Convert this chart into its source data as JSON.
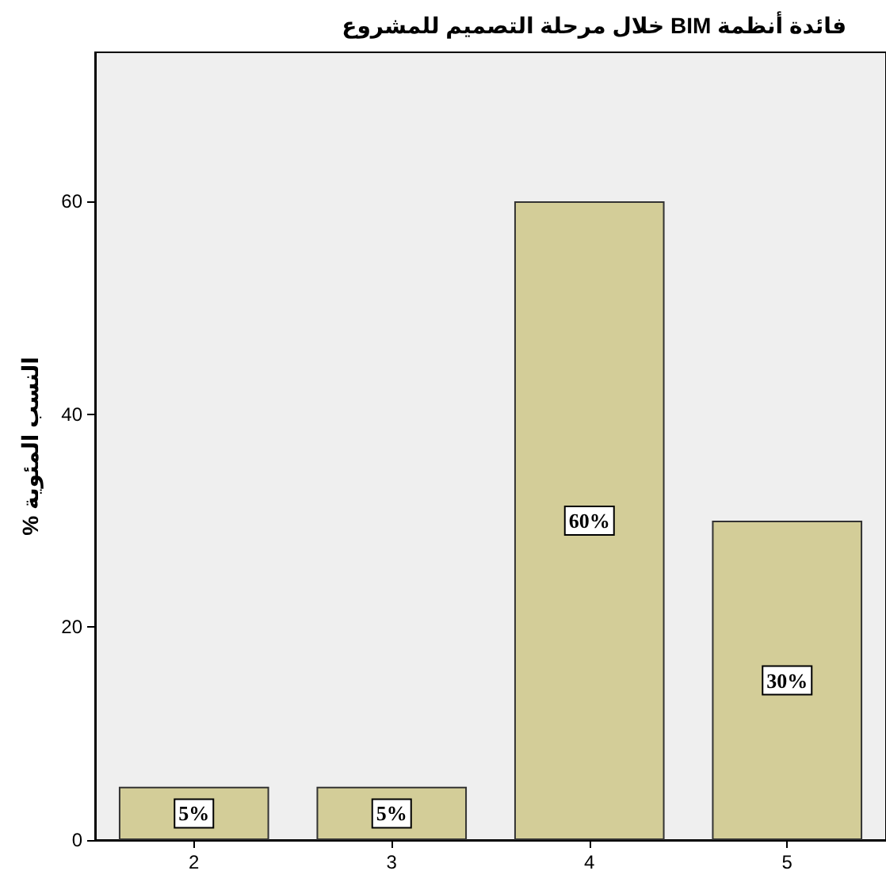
{
  "chart_data": {
    "type": "bar",
    "title": "فائدة أنظمة BIM خلال مرحلة التصميم للمشروع",
    "ylabel": "النسب المئوية %",
    "categories": [
      "2",
      "3",
      "4",
      "5"
    ],
    "values": [
      5,
      5,
      60,
      30
    ],
    "value_labels": [
      "5%",
      "5%",
      "60%",
      "30%"
    ],
    "color": "#d3cd98",
    "ylim": [
      0,
      74
    ],
    "yticks": [
      0,
      20,
      40,
      60
    ],
    "grid": false
  }
}
